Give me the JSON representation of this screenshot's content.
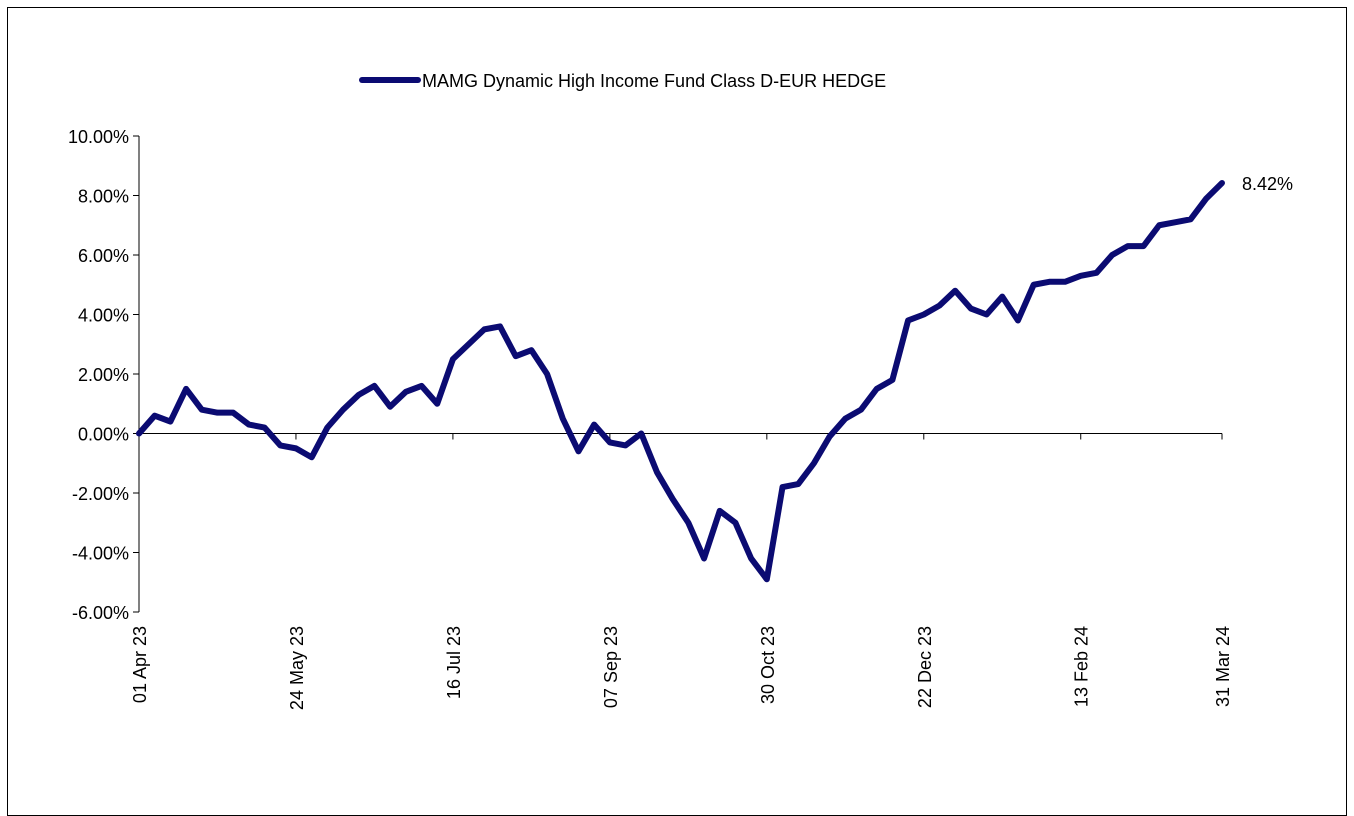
{
  "chart_data": {
    "type": "line",
    "categories": [
      "01 Apr 23",
      null,
      null,
      null,
      null,
      null,
      null,
      null,
      null,
      null,
      "24 May 23",
      null,
      null,
      null,
      null,
      null,
      null,
      null,
      null,
      null,
      "16 Jul 23",
      null,
      null,
      null,
      null,
      null,
      null,
      null,
      null,
      null,
      "07 Sep 23",
      null,
      null,
      null,
      null,
      null,
      null,
      null,
      null,
      null,
      "30 Oct 23",
      null,
      null,
      null,
      null,
      null,
      null,
      null,
      null,
      null,
      "22 Dec 23",
      null,
      null,
      null,
      null,
      null,
      null,
      null,
      null,
      null,
      "13 Feb 24",
      null,
      null,
      null,
      null,
      null,
      null,
      null,
      null,
      "31 Mar 24"
    ],
    "series": [
      {
        "name": "MAMG Dynamic High Income Fund Class D-EUR HEDGE",
        "color": "#0b0b72",
        "values": [
          0.0,
          0.6,
          0.4,
          1.5,
          0.8,
          0.7,
          0.7,
          0.3,
          0.2,
          -0.4,
          -0.5,
          -0.8,
          0.2,
          0.8,
          1.3,
          1.6,
          0.9,
          1.4,
          1.6,
          1.0,
          2.5,
          3.0,
          3.5,
          3.6,
          2.6,
          2.8,
          2.0,
          0.5,
          -0.6,
          0.3,
          -0.3,
          -0.4,
          0.0,
          -1.3,
          -2.2,
          -3.0,
          -4.2,
          -2.6,
          -3.0,
          -4.2,
          -4.9,
          -1.8,
          -1.7,
          -1.0,
          -0.1,
          0.5,
          0.8,
          1.5,
          1.8,
          3.8,
          4.0,
          4.3,
          4.8,
          4.2,
          4.0,
          4.6,
          3.8,
          5.0,
          5.1,
          5.1,
          5.3,
          5.4,
          6.0,
          6.3,
          6.3,
          7.0,
          7.1,
          7.2,
          7.9,
          8.42
        ],
        "value_labels": [
          null,
          null,
          null,
          null,
          null,
          null,
          null,
          null,
          null,
          null,
          null,
          null,
          null,
          null,
          null,
          null,
          null,
          null,
          null,
          null,
          null,
          null,
          null,
          null,
          null,
          null,
          null,
          null,
          null,
          null,
          null,
          null,
          null,
          null,
          null,
          null,
          null,
          null,
          null,
          null,
          null,
          null,
          null,
          null,
          null,
          null,
          null,
          null,
          null,
          null,
          null,
          null,
          null,
          null,
          null,
          null,
          null,
          null,
          null,
          null,
          null,
          null,
          null,
          null,
          null,
          null,
          null,
          null,
          null,
          "8.42%"
        ]
      }
    ],
    "ylim": [
      -6,
      10
    ],
    "yticks": [
      {
        "value": -6,
        "label": "-6.00%"
      },
      {
        "value": -4,
        "label": "-4.00%"
      },
      {
        "value": -2,
        "label": "-2.00%"
      },
      {
        "value": 0,
        "label": "0.00%"
      },
      {
        "value": 2,
        "label": "2.00%"
      },
      {
        "value": 4,
        "label": "4.00%"
      },
      {
        "value": 6,
        "label": "6.00%"
      },
      {
        "value": 8,
        "label": "8.00%"
      },
      {
        "value": 10,
        "label": "10.00%"
      }
    ],
    "legend": "top"
  }
}
